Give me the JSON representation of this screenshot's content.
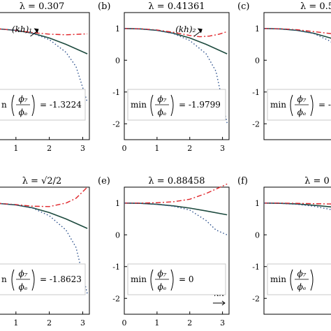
{
  "chart_data": [
    {
      "type": "line",
      "panel_label": "",
      "title": "λ = 0.307",
      "x_ticks": [
        "1",
        "2",
        "3"
      ],
      "y_ticks": [],
      "xlim": [
        0.0,
        3.2
      ],
      "ylim": [
        -2.5,
        1.5
      ],
      "annotation": {
        "text": "(kh)₁",
        "x": 1.6
      },
      "box": {
        "prefix": "n",
        "value": "= -1.3224"
      },
      "series": [
        {
          "style": "solid",
          "color": "#1d4a3e",
          "x": [
            0.0,
            0.5,
            1.0,
            1.5,
            2.0,
            2.5,
            3.14
          ],
          "y": [
            1.0,
            0.985,
            0.94,
            0.85,
            0.7,
            0.5,
            0.2
          ]
        },
        {
          "style": "dashdot",
          "color": "#e0252a",
          "x": [
            0.0,
            0.5,
            1.0,
            1.5,
            2.0,
            2.5,
            3.14
          ],
          "y": [
            1.0,
            0.985,
            0.94,
            0.87,
            0.82,
            0.8,
            0.83
          ]
        },
        {
          "style": "dotted",
          "color": "#2a4f8c",
          "x": [
            0.0,
            0.5,
            1.0,
            1.5,
            2.0,
            2.5,
            2.8,
            3.14
          ],
          "y": [
            1.0,
            0.985,
            0.94,
            0.85,
            0.65,
            0.25,
            -0.2,
            -1.32
          ]
        }
      ]
    },
    {
      "type": "line",
      "panel_label": "(b)",
      "title": "λ = 0.41361",
      "x_ticks": [
        "0",
        "1",
        "2",
        "3"
      ],
      "y_ticks": [
        "1",
        "0",
        "-1",
        "-2"
      ],
      "xlim": [
        0.0,
        3.2
      ],
      "ylim": [
        -2.5,
        1.5
      ],
      "annotation": {
        "text": "(kh)₂",
        "x": 2.3
      },
      "box": {
        "prefix": "min",
        "value": "= -1.9799"
      },
      "series": [
        {
          "style": "solid",
          "color": "#1d4a3e",
          "x": [
            0.0,
            0.5,
            1.0,
            1.5,
            2.0,
            2.5,
            3.14
          ],
          "y": [
            1.0,
            0.985,
            0.94,
            0.85,
            0.7,
            0.5,
            0.2
          ]
        },
        {
          "style": "dashdot",
          "color": "#e0252a",
          "x": [
            0.0,
            0.5,
            1.0,
            1.5,
            2.0,
            2.3,
            2.6,
            2.9,
            3.14
          ],
          "y": [
            1.0,
            0.99,
            0.95,
            0.88,
            0.78,
            0.74,
            0.76,
            0.82,
            0.9
          ]
        },
        {
          "style": "dotted",
          "color": "#2a4f8c",
          "x": [
            0.0,
            0.5,
            1.0,
            1.5,
            2.0,
            2.5,
            2.8,
            3.14
          ],
          "y": [
            1.0,
            0.985,
            0.94,
            0.84,
            0.62,
            0.2,
            -0.35,
            -1.98
          ]
        }
      ]
    },
    {
      "type": "line",
      "panel_label": "(c)",
      "title": "λ = 0.5",
      "x_ticks": [],
      "y_ticks": [
        "1",
        "0",
        "-1",
        "-2"
      ],
      "xlim": [
        0.0,
        3.2
      ],
      "ylim": [
        -2.5,
        1.5
      ],
      "annotation": null,
      "box": {
        "prefix": "min",
        "value": "= -"
      },
      "series": [
        {
          "style": "solid",
          "color": "#1d4a3e",
          "x": [
            0.0,
            0.5,
            1.0,
            1.5,
            2.0,
            2.5,
            3.14
          ],
          "y": [
            1.0,
            0.985,
            0.94,
            0.85,
            0.7,
            0.5,
            0.2
          ]
        },
        {
          "style": "dashdot",
          "color": "#e0252a",
          "x": [
            0.0,
            0.5,
            1.0,
            1.5,
            2.0,
            2.5,
            3.14
          ],
          "y": [
            1.0,
            0.99,
            0.96,
            0.9,
            0.84,
            0.83,
            0.9
          ]
        },
        {
          "style": "dotted",
          "color": "#2a4f8c",
          "x": [
            0.0,
            0.5,
            1.0,
            1.5,
            2.0,
            2.5,
            3.14
          ],
          "y": [
            1.0,
            0.985,
            0.94,
            0.84,
            0.6,
            0.1,
            -1.5
          ]
        }
      ]
    },
    {
      "type": "line",
      "panel_label": "",
      "title": "λ = √2/2",
      "x_ticks": [
        "1",
        "2",
        "3"
      ],
      "y_ticks": [],
      "xlim": [
        0.0,
        3.2
      ],
      "ylim": [
        -2.5,
        1.5
      ],
      "annotation": null,
      "box": {
        "prefix": "n",
        "value": "= -1.8623"
      },
      "series": [
        {
          "style": "solid",
          "color": "#1d4a3e",
          "x": [
            0.0,
            0.5,
            1.0,
            1.5,
            2.0,
            2.5,
            3.14
          ],
          "y": [
            1.0,
            0.985,
            0.94,
            0.85,
            0.7,
            0.5,
            0.2
          ]
        },
        {
          "style": "dashdot",
          "color": "#e0252a",
          "x": [
            0.0,
            0.5,
            1.0,
            1.5,
            2.0,
            2.5,
            2.8,
            3.14
          ],
          "y": [
            1.0,
            0.99,
            0.95,
            0.9,
            0.89,
            1.0,
            1.15,
            1.5
          ]
        },
        {
          "style": "dotted",
          "color": "#2a4f8c",
          "x": [
            0.0,
            0.5,
            1.0,
            1.5,
            2.0,
            2.5,
            2.8,
            3.14
          ],
          "y": [
            1.0,
            0.985,
            0.94,
            0.84,
            0.6,
            0.15,
            -0.4,
            -1.86
          ]
        }
      ]
    },
    {
      "type": "line",
      "panel_label": "(e)",
      "title": "λ = 0.88458",
      "x_ticks": [
        "0",
        "1",
        "2",
        "3"
      ],
      "y_ticks": [
        "1",
        "0",
        "-1",
        "-2"
      ],
      "xlim": [
        0.0,
        3.2
      ],
      "ylim": [
        -2.5,
        1.5
      ],
      "annotation": {
        "text": "kh",
        "x": 2.9
      },
      "box": {
        "prefix": "min",
        "value": "= 0"
      },
      "series": [
        {
          "style": "solid",
          "color": "#1d4a3e",
          "x": [
            0.0,
            0.5,
            1.0,
            1.5,
            2.0,
            2.5,
            3.14
          ],
          "y": [
            1.0,
            0.99,
            0.96,
            0.91,
            0.84,
            0.75,
            0.63
          ]
        },
        {
          "style": "dashdot",
          "color": "#e0252a",
          "x": [
            0.0,
            0.5,
            1.0,
            1.5,
            2.0,
            2.5,
            3.14
          ],
          "y": [
            1.0,
            1.0,
            1.01,
            1.04,
            1.12,
            1.3,
            1.6
          ]
        },
        {
          "style": "dotted",
          "color": "#2a4f8c",
          "x": [
            0.0,
            0.5,
            1.0,
            1.5,
            2.0,
            2.5,
            2.8,
            3.14
          ],
          "y": [
            1.0,
            0.99,
            0.96,
            0.9,
            0.78,
            0.45,
            0.15,
            0.0
          ]
        }
      ]
    },
    {
      "type": "line",
      "panel_label": "(f)",
      "title": "λ = 0",
      "x_ticks": [],
      "y_ticks": [
        "1",
        "0",
        "-1",
        "-2"
      ],
      "xlim": [
        0.0,
        3.2
      ],
      "ylim": [
        -2.5,
        1.5
      ],
      "annotation": null,
      "box": {
        "prefix": "min",
        "value": ""
      },
      "series": [
        {
          "style": "solid",
          "color": "#1d4a3e",
          "x": [
            0.0,
            0.5,
            1.0,
            1.5,
            2.0,
            2.5,
            3.14
          ],
          "y": [
            1.0,
            0.99,
            0.97,
            0.93,
            0.88,
            0.82,
            0.75
          ]
        },
        {
          "style": "dashdot",
          "color": "#e0252a",
          "x": [
            0.0,
            0.5,
            1.0,
            1.5,
            2.0,
            2.5,
            3.14
          ],
          "y": [
            1.0,
            1.0,
            0.99,
            0.98,
            0.97,
            0.96,
            0.95
          ]
        },
        {
          "style": "dotted",
          "color": "#2a4f8c",
          "x": [
            0.0,
            0.5,
            1.0,
            1.5,
            2.0,
            2.5,
            3.14
          ],
          "y": [
            1.0,
            0.99,
            0.96,
            0.9,
            0.8,
            0.65,
            0.45
          ]
        }
      ]
    }
  ]
}
